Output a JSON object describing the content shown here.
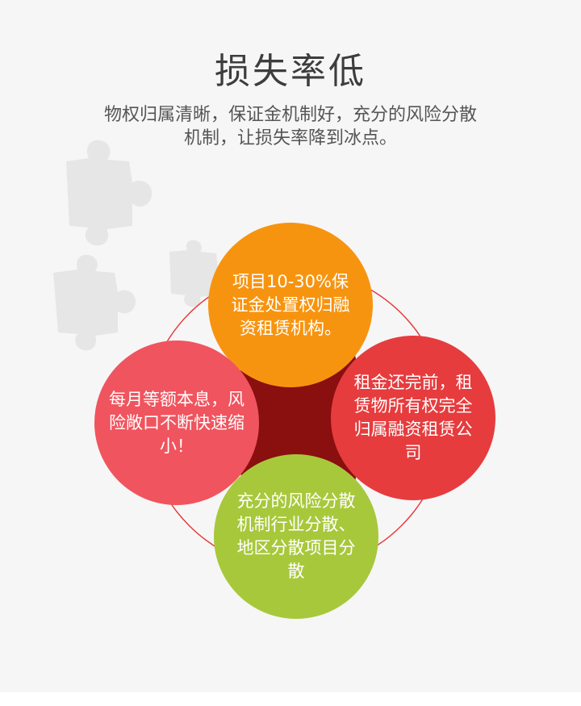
{
  "header": {
    "title": "损失率低",
    "subtitle_line1": "物权归属清晰，保证金机制好，充分的风险分散",
    "subtitle_line2": "机制，让损失率降到冰点。"
  },
  "circles": {
    "top": {
      "text": "项目10-30%保证金处置权归融资租赁机构。",
      "color": "#f7940f"
    },
    "left": {
      "text": "每月等额本息，风险敞口不断快速缩小！",
      "color": "#f0545e"
    },
    "right": {
      "text": "租金还完前，租赁物所有权完全归属融资租赁公司",
      "color": "#e63c3e"
    },
    "bottom": {
      "text": "充分的风险分散机制行业分散、地区分散项目分散",
      "color": "#a8c83c"
    }
  },
  "colors": {
    "background": "#f6f6f6",
    "center_dark": "#8a0f0f",
    "ring": "#e63c3e",
    "puzzle": "#e6e6e6"
  },
  "icons": [
    "puzzle-piece-icon"
  ]
}
